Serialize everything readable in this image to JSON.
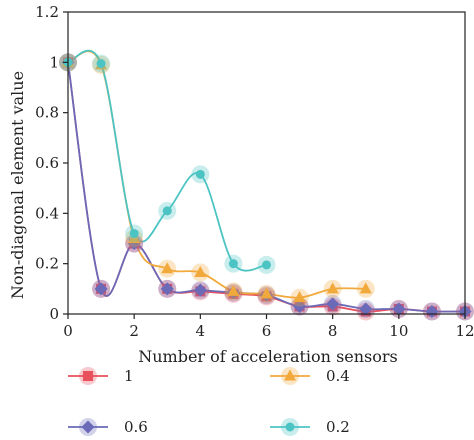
{
  "chart_data": {
    "type": "line",
    "xlabel": "Number of acceleration sensors",
    "ylabel": "Non-diagonal element value",
    "xlim": [
      0,
      12
    ],
    "ylim": [
      0,
      1.2
    ],
    "x_ticks": [
      0,
      2,
      4,
      6,
      8,
      10,
      12
    ],
    "y_ticks": [
      0,
      0.2,
      0.4,
      0.6,
      0.8,
      1,
      1.2
    ],
    "x_tick_labels": [
      "0",
      "2",
      "4",
      "6",
      "8",
      "10",
      "12"
    ],
    "y_tick_labels": [
      "0",
      "0.2",
      "0.4",
      "0.6",
      "0.8",
      "1",
      "1.2"
    ],
    "grid": false,
    "legend_position": "below",
    "series": [
      {
        "name": "1",
        "color": "#e8505b",
        "marker": "square",
        "x": [
          0,
          1,
          2,
          3,
          4,
          5,
          6,
          7,
          8,
          9,
          10,
          11,
          12
        ],
        "y": [
          1.0,
          0.1,
          0.28,
          0.1,
          0.09,
          0.08,
          0.07,
          0.03,
          0.03,
          0.01,
          0.02,
          0.01,
          0.01
        ]
      },
      {
        "name": "0.6",
        "color": "#6a6ab8",
        "marker": "diamond",
        "x": [
          0,
          1,
          2,
          3,
          4,
          5,
          6,
          7,
          8,
          9,
          10,
          11,
          12
        ],
        "y": [
          1.0,
          0.1,
          0.28,
          0.1,
          0.095,
          0.085,
          0.075,
          0.03,
          0.04,
          0.02,
          0.02,
          0.01,
          0.01
        ]
      },
      {
        "name": "0.4",
        "color": "#f2a93b",
        "marker": "triangle",
        "x": [
          0,
          1,
          2,
          3,
          4,
          5,
          6,
          7,
          8,
          9
        ],
        "y": [
          1.0,
          0.99,
          0.3,
          0.18,
          0.165,
          0.09,
          0.08,
          0.065,
          0.1,
          0.1
        ]
      },
      {
        "name": "0.2",
        "color": "#4dc4c4",
        "marker": "circle",
        "x": [
          0,
          1,
          2,
          3,
          4,
          5,
          6
        ],
        "y": [
          1.0,
          0.995,
          0.32,
          0.41,
          0.555,
          0.2,
          0.195
        ]
      }
    ]
  }
}
